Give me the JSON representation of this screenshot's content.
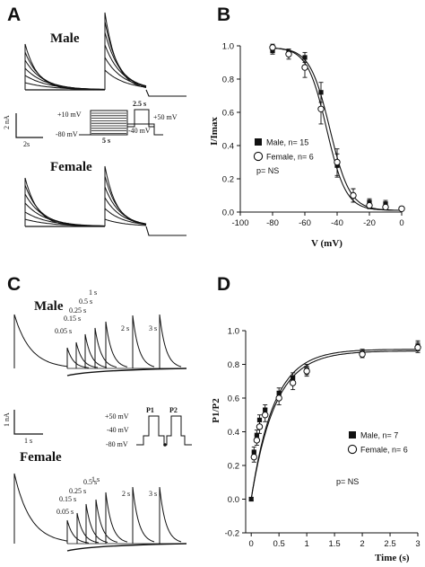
{
  "panels": {
    "A": {
      "letter": "A",
      "male_label": "Male",
      "female_label": "Female",
      "scale_y": "2 nA",
      "scale_x": "2s",
      "protocol": {
        "v_plus10": "+10 mV",
        "v_minus80": "-80 mV",
        "v_minus40": "-40 mV",
        "v_plus50": "+50 mV",
        "t_5s": "5 s",
        "t_2_5s": "2.5 s"
      }
    },
    "C": {
      "letter": "C",
      "male_label": "Male",
      "female_label": "Female",
      "scale_y": "1 nA",
      "scale_x": "1 s",
      "intervals": [
        "0.05 s",
        "0.15 s",
        "0.25 s",
        "0.5 s",
        "1 s",
        "2 s",
        "3 s"
      ],
      "protocol": {
        "v_plus50": "+50 mV",
        "v_minus40": "-40 mV",
        "v_minus80": "-80 mV",
        "p1": "P1",
        "p2": "P2"
      }
    }
  },
  "chart_data": [
    {
      "panel": "B",
      "type": "line",
      "xlabel": "V (mV)",
      "ylabel": "I/Imax",
      "xlim": [
        -100,
        0
      ],
      "ylim": [
        0,
        1.0
      ],
      "xticks": [
        "-100",
        "-80",
        "-60",
        "-40",
        "-20",
        "0"
      ],
      "yticks": [
        "0.0",
        "0.2",
        "0.4",
        "0.6",
        "0.8",
        "1.0"
      ],
      "grid": false,
      "legend_position": "left-middle",
      "annotation": "p= NS",
      "series": [
        {
          "name": "Male, n= 15",
          "marker": "filled-square",
          "x": [
            -80,
            -70,
            -60,
            -50,
            -40,
            -30,
            -20,
            -10,
            0
          ],
          "y": [
            0.97,
            0.96,
            0.93,
            0.72,
            0.28,
            0.1,
            0.06,
            0.05,
            0.02
          ],
          "err": [
            0.02,
            0.02,
            0.03,
            0.06,
            0.07,
            0.04,
            0.02,
            0.02,
            0.01
          ],
          "fit": {
            "vhalf": -44.5,
            "k": 6.2,
            "top": 0.99,
            "bottom": 0.01
          }
        },
        {
          "name": "Female, n= 6",
          "marker": "open-circle",
          "x": [
            -80,
            -70,
            -60,
            -50,
            -40,
            -30,
            -20,
            -10,
            0
          ],
          "y": [
            0.99,
            0.95,
            0.87,
            0.62,
            0.3,
            0.1,
            0.04,
            0.03,
            0.02
          ],
          "err": [
            0.02,
            0.03,
            0.06,
            0.09,
            0.08,
            0.04,
            0.02,
            0.01,
            0.01
          ],
          "fit": {
            "vhalf": -46.5,
            "k": 6.0,
            "top": 0.99,
            "bottom": 0.01
          }
        }
      ]
    },
    {
      "panel": "D",
      "type": "line",
      "xlabel": "Time (s)",
      "ylabel": "P1/P2",
      "xlim": [
        -0.1,
        3.0
      ],
      "ylim": [
        -0.2,
        1.0
      ],
      "xticks": [
        "0",
        "0.5",
        "1",
        "1.5",
        "2",
        "2.5",
        "3"
      ],
      "yticks": [
        "-0.2",
        "0.0",
        "0.2",
        "0.4",
        "0.6",
        "0.8",
        "1.0"
      ],
      "grid": false,
      "legend_position": "bottom-right",
      "annotation": "p= NS",
      "series": [
        {
          "name": "Male, n= 7",
          "marker": "filled-square",
          "x": [
            0.0,
            0.05,
            0.1,
            0.15,
            0.25,
            0.5,
            0.75,
            1.0,
            2.0,
            3.0
          ],
          "y": [
            0.0,
            0.28,
            0.38,
            0.47,
            0.53,
            0.63,
            0.72,
            0.77,
            0.87,
            0.91
          ],
          "err": [
            0.01,
            0.03,
            0.03,
            0.03,
            0.03,
            0.03,
            0.03,
            0.03,
            0.02,
            0.03
          ],
          "fit": {
            "a0": 0.0,
            "a": 0.89,
            "tau": 0.41
          }
        },
        {
          "name": "Female, n= 6",
          "marker": "open-circle",
          "x": [
            0.05,
            0.1,
            0.15,
            0.25,
            0.5,
            0.75,
            1.0,
            2.0,
            3.0
          ],
          "y": [
            0.25,
            0.35,
            0.43,
            0.5,
            0.6,
            0.69,
            0.76,
            0.86,
            0.9
          ],
          "err": [
            0.03,
            0.03,
            0.04,
            0.04,
            0.04,
            0.04,
            0.03,
            0.02,
            0.03
          ],
          "fit": {
            "a0": 0.0,
            "a": 0.88,
            "tau": 0.43
          }
        }
      ]
    }
  ]
}
